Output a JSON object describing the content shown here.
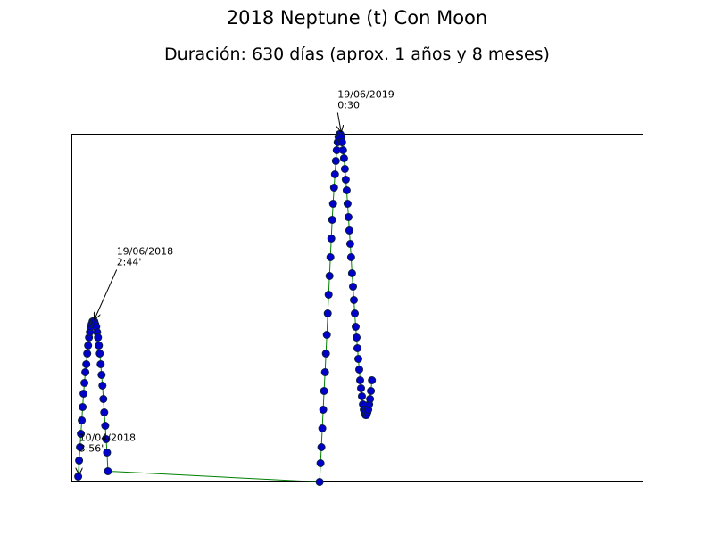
{
  "chart_data": {
    "type": "scatter",
    "title": "2018 Neptune (t) Con Moon",
    "subtitle": "Duración: 630 días (aprox. 1 años y 8 meses)",
    "xlabel": "",
    "ylabel": "",
    "x_unit": "date",
    "xlim": [
      "2018-04-03",
      "2019-12-28"
    ],
    "ylim": [
      0,
      130
    ],
    "grid": false,
    "legend": "none",
    "colors": {
      "marker_fill": "#0000cc",
      "marker_edge": "#0b1e3f",
      "line": "#008000",
      "frame": "#000000"
    },
    "x_ticks_shown": false,
    "y_ticks_shown": false,
    "series": [
      {
        "segments": [
          {
            "start": "2018-04-10",
            "step_days": 1,
            "values": [
              2,
              8,
              13,
              18,
              23,
              28,
              33,
              37,
              41,
              44,
              48,
              51,
              54,
              56,
              58,
              59,
              60,
              60,
              60,
              59,
              58,
              56,
              54,
              51,
              48,
              44,
              40,
              36,
              31,
              26,
              21,
              16,
              11,
              4
            ]
          },
          {
            "start": "2019-01-03",
            "step_days": 1,
            "values": [
              0,
              7,
              13,
              20,
              27,
              34,
              41,
              48,
              55,
              63,
              70,
              77,
              84,
              91,
              98,
              104,
              110,
              115,
              120,
              124,
              127,
              129,
              130,
              130,
              129,
              127,
              124,
              121,
              117,
              113,
              109,
              104,
              99,
              94,
              89,
              84,
              78,
              73,
              68,
              63,
              58,
              54,
              50,
              46,
              42,
              38,
              35,
              32,
              29,
              27,
              26,
              25,
              25,
              26,
              27,
              29,
              31,
              34,
              38
            ]
          }
        ]
      }
    ],
    "annotations": [
      {
        "date": "2018-04-10",
        "value": 2,
        "line1": "10/04/2018",
        "line2": "3:56'",
        "dx": 1,
        "dy": -39
      },
      {
        "date": "2018-04-27",
        "value": 60,
        "line1": "19/06/2018",
        "line2": "2:44'",
        "dx": 26,
        "dy": -74
      },
      {
        "date": "2019-01-26",
        "value": 130,
        "line1": "19/06/2019",
        "line2": "0:30'",
        "dx": -3,
        "dy": -40
      }
    ]
  }
}
